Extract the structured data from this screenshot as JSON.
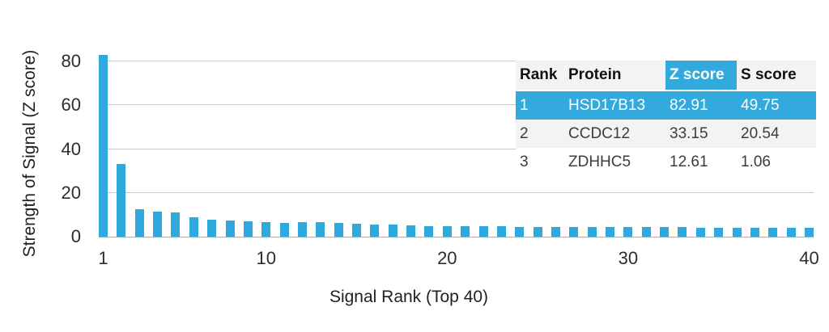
{
  "chart_data": {
    "type": "bar",
    "title": "",
    "xlabel": "Signal Rank (Top 40)",
    "ylabel": "Strength of Signal (Z score)",
    "x": [
      1,
      2,
      3,
      4,
      5,
      6,
      7,
      8,
      9,
      10,
      11,
      12,
      13,
      14,
      15,
      16,
      17,
      18,
      19,
      20,
      21,
      22,
      23,
      24,
      25,
      26,
      27,
      28,
      29,
      30,
      31,
      32,
      33,
      34,
      35,
      36,
      37,
      38,
      39,
      40
    ],
    "values": [
      82.91,
      33.15,
      12.61,
      11.3,
      10.9,
      8.9,
      7.9,
      7.4,
      7.1,
      6.7,
      6.4,
      6.6,
      6.5,
      6.1,
      5.8,
      5.6,
      5.5,
      5.2,
      4.9,
      4.7,
      4.8,
      4.7,
      4.7,
      4.6,
      4.6,
      4.5,
      4.5,
      4.5,
      4.4,
      4.4,
      4.3,
      4.3,
      4.3,
      4.2,
      4.2,
      4.2,
      4.1,
      4.1,
      4.1,
      4.2
    ],
    "ylim": [
      0,
      86
    ],
    "yticks": [
      0,
      20,
      40,
      60,
      80
    ],
    "xticks": [
      1,
      10,
      20,
      30,
      40
    ],
    "grid": true,
    "legend": "none",
    "bar_color": "#2fa8dc",
    "gridline_color": "#c9c9c9"
  },
  "table": {
    "headers": [
      "Rank",
      "Protein",
      "Z score",
      "S score"
    ],
    "highlight_color": "#33aadd",
    "rows": [
      {
        "rank": "1",
        "protein": "HSD17B13",
        "z_score": "82.91",
        "s_score": "49.75",
        "highlighted": true
      },
      {
        "rank": "2",
        "protein": "CCDC12",
        "z_score": "33.15",
        "s_score": "20.54",
        "highlighted": false
      },
      {
        "rank": "3",
        "protein": "ZDHHC5",
        "z_score": "12.61",
        "s_score": "1.06",
        "highlighted": false
      }
    ]
  }
}
